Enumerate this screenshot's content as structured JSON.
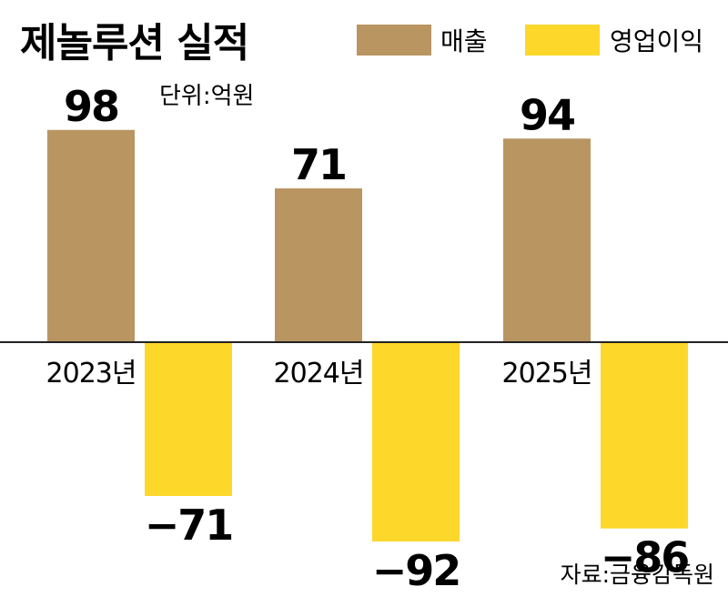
{
  "chart_data": {
    "type": "bar",
    "title": "제놀루션 실적",
    "unit": "단위:억원",
    "source": "자료:금융감독원",
    "categories": [
      "2023년",
      "2024년",
      "2025년"
    ],
    "series": [
      {
        "name": "매출",
        "color": "#b99561",
        "values": [
          98,
          71,
          94
        ]
      },
      {
        "name": "영업이익",
        "color": "#fdd72a",
        "values": [
          -71,
          -92,
          -86
        ]
      }
    ],
    "value_labels": [
      [
        "98",
        "71",
        "94"
      ],
      [
        "−71",
        "−92",
        "−86"
      ]
    ],
    "xlabel": "",
    "ylabel": "",
    "ylim": [
      -100,
      100
    ],
    "grid": false,
    "legend": "top-right"
  }
}
